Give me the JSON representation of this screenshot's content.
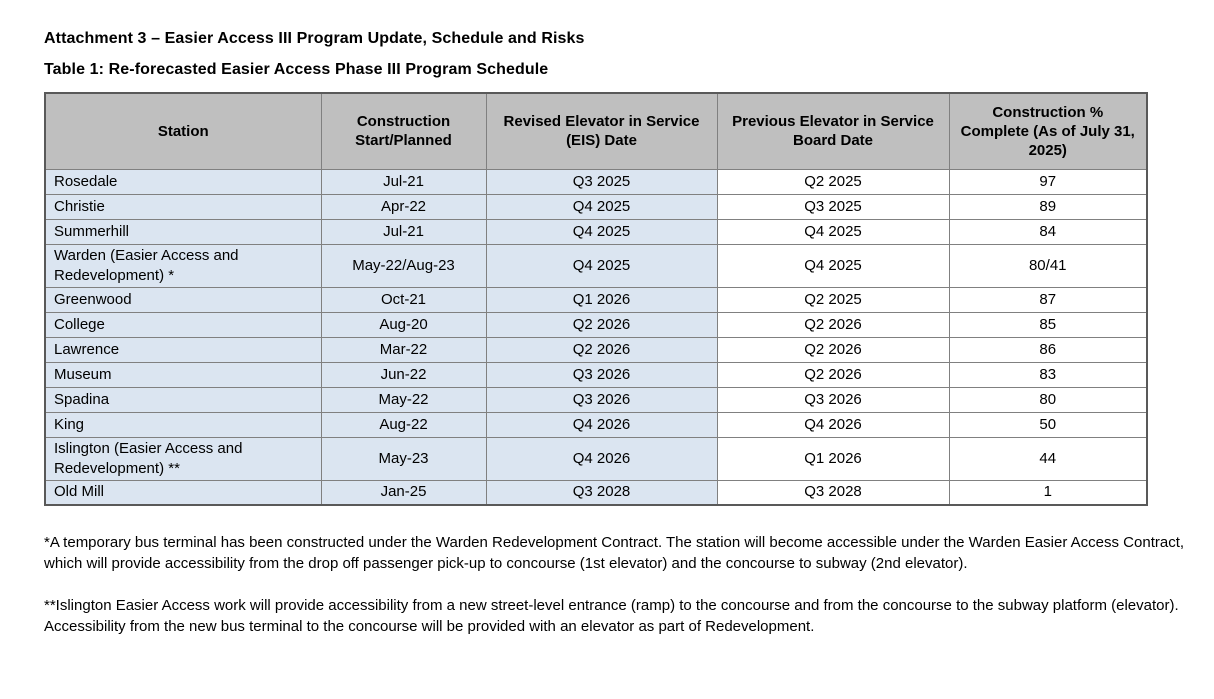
{
  "page": {
    "title": "Attachment 3 – Easier Access III Program Update, Schedule and Risks",
    "table_caption": "Table 1: Re-forecasted Easier Access Phase III Program Schedule"
  },
  "table": {
    "columns": [
      "Station",
      "Construction Start/Planned",
      "Revised Elevator in Service (EIS) Date",
      "Previous Elevator in Service Board Date",
      "Construction % Complete (As of July 31, 2025)"
    ],
    "rows": [
      [
        "Rosedale",
        "Jul-21",
        "Q3 2025",
        "Q2 2025",
        "97"
      ],
      [
        "Christie",
        "Apr-22",
        "Q4 2025",
        "Q3 2025",
        "89"
      ],
      [
        "Summerhill",
        "Jul-21",
        "Q4 2025",
        "Q4 2025",
        "84"
      ],
      [
        "Warden (Easier Access and Redevelopment) *",
        "May-22/Aug-23",
        "Q4 2025",
        "Q4 2025",
        "80/41"
      ],
      [
        "Greenwood",
        "Oct-21",
        "Q1 2026",
        "Q2 2025",
        "87"
      ],
      [
        "College",
        "Aug-20",
        "Q2 2026",
        "Q2 2026",
        "85"
      ],
      [
        "Lawrence",
        "Mar-22",
        "Q2 2026",
        "Q2 2026",
        "86"
      ],
      [
        "Museum",
        "Jun-22",
        "Q3 2026",
        "Q2 2026",
        "83"
      ],
      [
        "Spadina",
        "May-22",
        "Q3 2026",
        "Q3 2026",
        "80"
      ],
      [
        "King",
        "Aug-22",
        "Q4 2026",
        "Q4 2026",
        "50"
      ],
      [
        "Islington (Easier Access and Redevelopment) **",
        "May-23",
        "Q4 2026",
        "Q1 2026",
        "44"
      ],
      [
        "Old Mill",
        "Jan-25",
        "Q3 2028",
        "Q3 2028",
        "1"
      ]
    ],
    "highlighted_columns": [
      0,
      1,
      2
    ]
  },
  "footnotes": [
    "*A temporary bus terminal has been constructed under the Warden Redevelopment Contract. The station will become accessible under the Warden Easier Access Contract, which will provide accessibility from the drop off passenger pick-up to concourse (1st elevator) and the concourse to subway (2nd elevator).",
    "**Islington Easier Access work will provide accessibility from a new street-level entrance (ramp) to the concourse and from the concourse to the subway platform (elevator). Accessibility from the new bus terminal to the concourse will be provided with an elevator as part of Redevelopment."
  ],
  "colors": {
    "header_bg": "#bfbfbf",
    "highlight_bg": "#dbe5f1",
    "border": "#808080",
    "outer_border": "#595959"
  }
}
